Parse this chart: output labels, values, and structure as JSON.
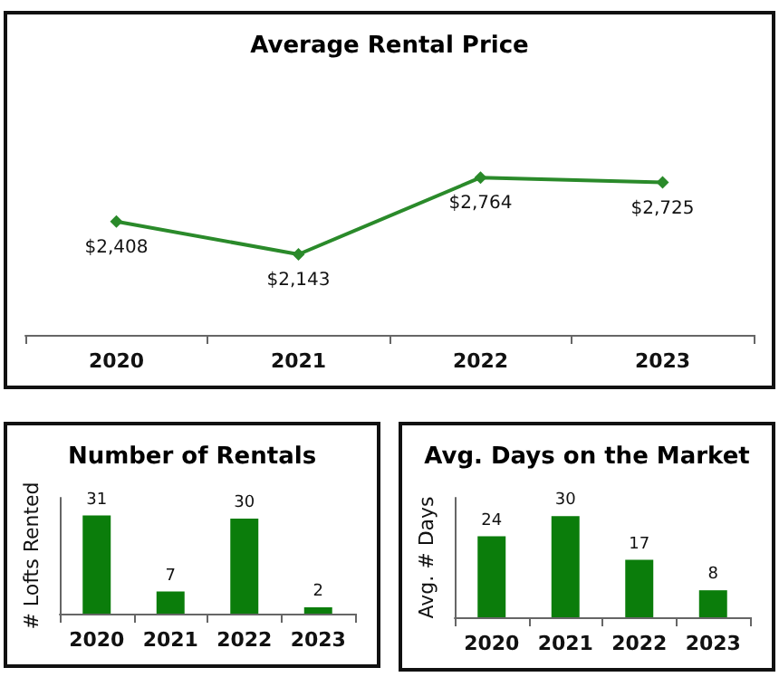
{
  "chart_data": [
    {
      "type": "line",
      "title": "Average Rental Price",
      "categories": [
        "2020",
        "2021",
        "2022",
        "2023"
      ],
      "series": [
        {
          "color": "#2a8a2a",
          "values": [
            2408,
            2143,
            2764,
            2725
          ],
          "value_labels": [
            "$2,408",
            "$2,143",
            "$2,764",
            "$2,725"
          ]
        }
      ],
      "marker": "diamond",
      "grid": false,
      "tick_labels": "x"
    },
    {
      "type": "bar",
      "title": "Number of Rentals",
      "ylabel": "# Lofts Rented",
      "categories": [
        "2020",
        "2021",
        "2022",
        "2023"
      ],
      "values": [
        31,
        7,
        30,
        2
      ],
      "color": "#0b7d0b",
      "data_labels": true,
      "grid": false,
      "tick_labels": "x"
    },
    {
      "type": "bar",
      "title": "Avg. Days on the Market",
      "ylabel": "Avg. # Days",
      "categories": [
        "2020",
        "2021",
        "2022",
        "2023"
      ],
      "values": [
        24,
        30,
        17,
        8
      ],
      "color": "#0b7d0b",
      "data_labels": true,
      "grid": false,
      "tick_labels": "x"
    }
  ]
}
